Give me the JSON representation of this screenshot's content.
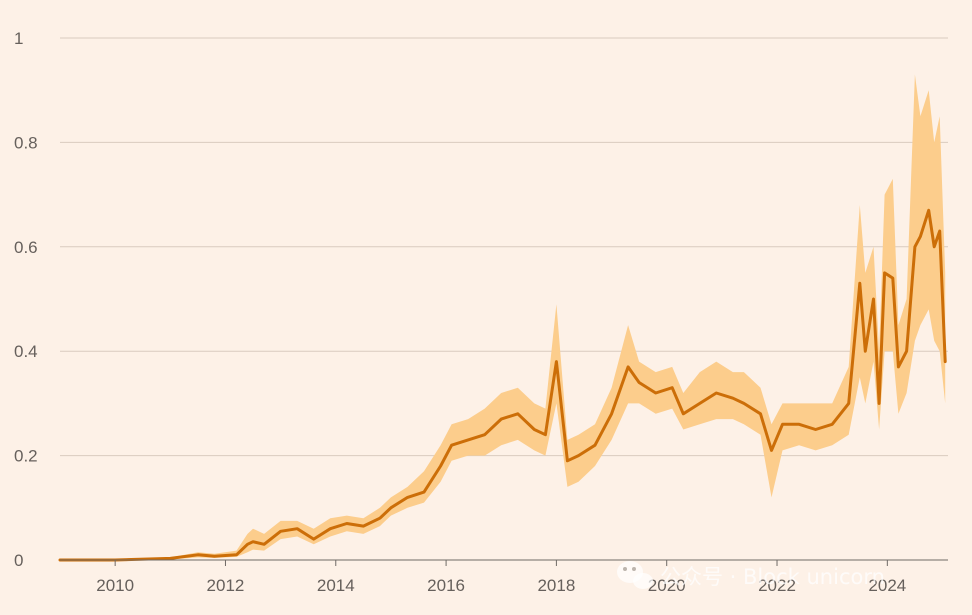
{
  "chart_data": {
    "type": "line",
    "title": "",
    "xlabel": "",
    "ylabel": "",
    "xlim": [
      2009.0,
      2025.1
    ],
    "ylim": [
      0,
      1
    ],
    "grid": true,
    "legend": "none",
    "x_ticks": [
      2010,
      2012,
      2014,
      2016,
      2018,
      2020,
      2022,
      2024
    ],
    "x_tick_labels": [
      "2010",
      "2012",
      "2014",
      "2016",
      "2018",
      "2020",
      "2022",
      "2024"
    ],
    "y_ticks": [
      0,
      0.2,
      0.4,
      0.6,
      0.8,
      1
    ],
    "y_tick_labels": [
      "0",
      "0.2",
      "0.4",
      "0.6",
      "0.8",
      "1"
    ],
    "colors": {
      "background": "#fdf1e7",
      "band": "#fccd8c",
      "line": "#cc6e08",
      "grid": "#d9cbbf",
      "axis": "#6f6a66"
    },
    "series": [
      {
        "values_x": [
          2009.0,
          2010.0,
          2011.0,
          2011.5,
          2011.8,
          2012.2,
          2012.4,
          2012.5,
          2012.7,
          2013.0,
          2013.3,
          2013.6,
          2013.9,
          2014.2,
          2014.5,
          2014.8,
          2015.0,
          2015.3,
          2015.6,
          2015.9,
          2016.1,
          2016.4,
          2016.7,
          2017.0,
          2017.3,
          2017.6,
          2017.8,
          2018.0,
          2018.2,
          2018.4,
          2018.7,
          2019.0,
          2019.3,
          2019.5,
          2019.8,
          2020.1,
          2020.3,
          2020.6,
          2020.9,
          2021.2,
          2021.4,
          2021.7,
          2021.9,
          2022.1,
          2022.4,
          2022.7,
          2023.0,
          2023.3,
          2023.5,
          2023.6,
          2023.75,
          2023.85,
          2023.95,
          2024.1,
          2024.2,
          2024.35,
          2024.5,
          2024.6,
          2024.75,
          2024.85,
          2024.95,
          2025.05
        ],
        "values_y": [
          0.0,
          0.0,
          0.003,
          0.01,
          0.007,
          0.01,
          0.03,
          0.035,
          0.03,
          0.055,
          0.06,
          0.04,
          0.06,
          0.07,
          0.065,
          0.08,
          0.1,
          0.12,
          0.13,
          0.18,
          0.22,
          0.23,
          0.24,
          0.27,
          0.28,
          0.25,
          0.24,
          0.38,
          0.19,
          0.2,
          0.22,
          0.28,
          0.37,
          0.34,
          0.32,
          0.33,
          0.28,
          0.3,
          0.32,
          0.31,
          0.3,
          0.28,
          0.21,
          0.26,
          0.26,
          0.25,
          0.26,
          0.3,
          0.53,
          0.4,
          0.5,
          0.3,
          0.55,
          0.54,
          0.37,
          0.4,
          0.6,
          0.62,
          0.67,
          0.6,
          0.63,
          0.38
        ]
      }
    ],
    "band_upper_y": [
      0.0,
      0.0,
      0.005,
      0.015,
      0.012,
      0.018,
      0.05,
      0.06,
      0.05,
      0.075,
      0.075,
      0.06,
      0.08,
      0.085,
      0.08,
      0.1,
      0.12,
      0.14,
      0.17,
      0.22,
      0.26,
      0.27,
      0.29,
      0.32,
      0.33,
      0.3,
      0.29,
      0.49,
      0.23,
      0.24,
      0.26,
      0.33,
      0.45,
      0.38,
      0.36,
      0.37,
      0.32,
      0.36,
      0.38,
      0.36,
      0.36,
      0.33,
      0.26,
      0.3,
      0.3,
      0.3,
      0.3,
      0.37,
      0.68,
      0.55,
      0.6,
      0.4,
      0.7,
      0.73,
      0.45,
      0.5,
      0.93,
      0.85,
      0.9,
      0.8,
      0.85,
      0.55
    ],
    "band_lower_y": [
      0.0,
      0.0,
      0.001,
      0.005,
      0.004,
      0.006,
      0.015,
      0.02,
      0.018,
      0.04,
      0.045,
      0.03,
      0.045,
      0.055,
      0.05,
      0.065,
      0.085,
      0.1,
      0.11,
      0.15,
      0.19,
      0.2,
      0.2,
      0.22,
      0.23,
      0.21,
      0.2,
      0.3,
      0.14,
      0.15,
      0.18,
      0.23,
      0.3,
      0.3,
      0.28,
      0.29,
      0.25,
      0.26,
      0.27,
      0.27,
      0.26,
      0.24,
      0.12,
      0.21,
      0.22,
      0.21,
      0.22,
      0.24,
      0.35,
      0.3,
      0.38,
      0.25,
      0.4,
      0.4,
      0.28,
      0.32,
      0.42,
      0.45,
      0.48,
      0.42,
      0.4,
      0.3
    ]
  },
  "watermark": {
    "text": "公众号 · Block unicorn",
    "icon": "wechat-icon"
  }
}
